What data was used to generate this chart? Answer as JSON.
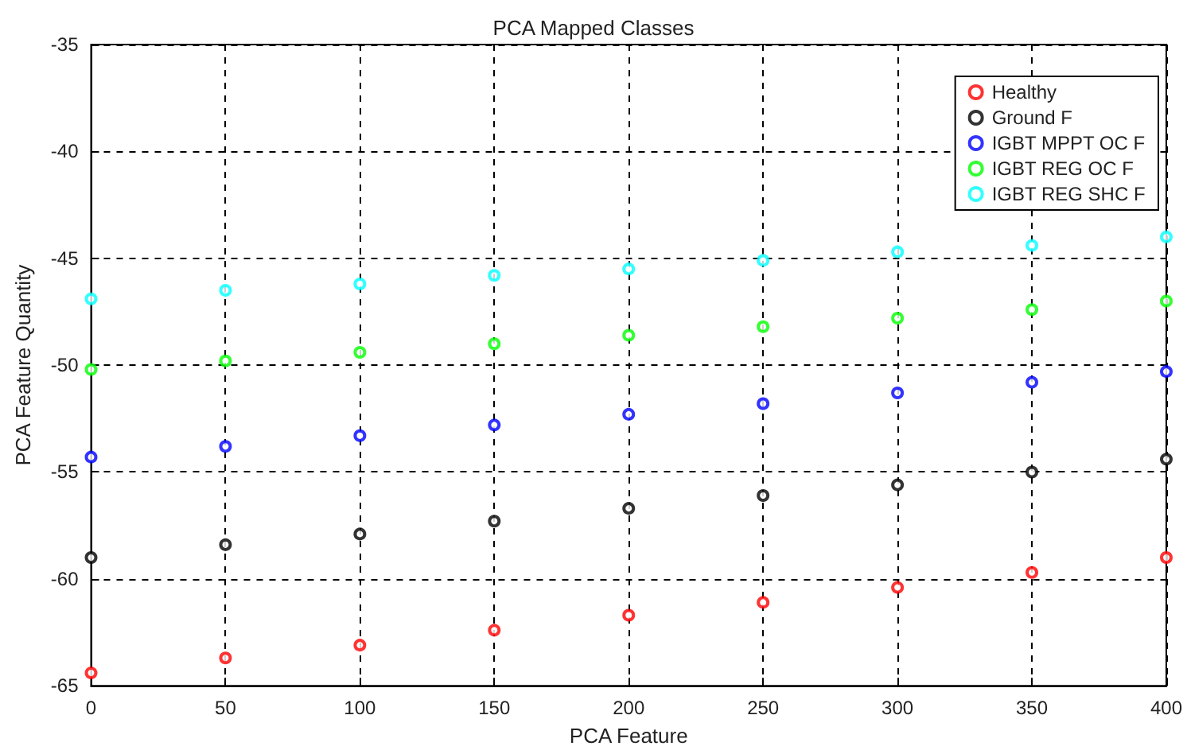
{
  "chart_data": {
    "type": "scatter",
    "title": "PCA Mapped Classes",
    "xlabel": "PCA Feature",
    "ylabel": "PCA Feature Quantity",
    "x": [
      0,
      50,
      100,
      150,
      200,
      250,
      300,
      350,
      400
    ],
    "series": [
      {
        "name": "Healthy",
        "color": "#ff0000",
        "values": [
          -64.4,
          -63.7,
          -63.1,
          -62.4,
          -61.7,
          -61.1,
          -60.4,
          -59.7,
          -59.0
        ]
      },
      {
        "name": "Ground F",
        "color": "#000000",
        "values": [
          -59.0,
          -58.4,
          -57.9,
          -57.3,
          -56.7,
          -56.1,
          -55.6,
          -55.0,
          -54.4
        ]
      },
      {
        "name": "IGBT MPPT OC F",
        "color": "#0000ff",
        "values": [
          -54.3,
          -53.8,
          -53.3,
          -52.8,
          -52.3,
          -51.8,
          -51.3,
          -50.8,
          -50.3
        ]
      },
      {
        "name": "IGBT REG OC F",
        "color": "#00ff00",
        "values": [
          -50.2,
          -49.8,
          -49.4,
          -49.0,
          -48.6,
          -48.2,
          -47.8,
          -47.4,
          -47.0
        ]
      },
      {
        "name": "IGBT REG SHC F",
        "color": "#00ffff",
        "values": [
          -46.9,
          -46.5,
          -46.2,
          -45.8,
          -45.5,
          -45.1,
          -44.7,
          -44.4,
          -44.0
        ]
      }
    ],
    "xlim": [
      0,
      400
    ],
    "xticks": [
      0,
      50,
      100,
      150,
      200,
      250,
      300,
      350,
      400
    ],
    "ylim": [
      -65,
      -35
    ],
    "yticks": [
      -65,
      -60,
      -55,
      -50,
      -45,
      -40,
      -35
    ],
    "grid": true,
    "legend": "top right",
    "marker": "circle"
  }
}
